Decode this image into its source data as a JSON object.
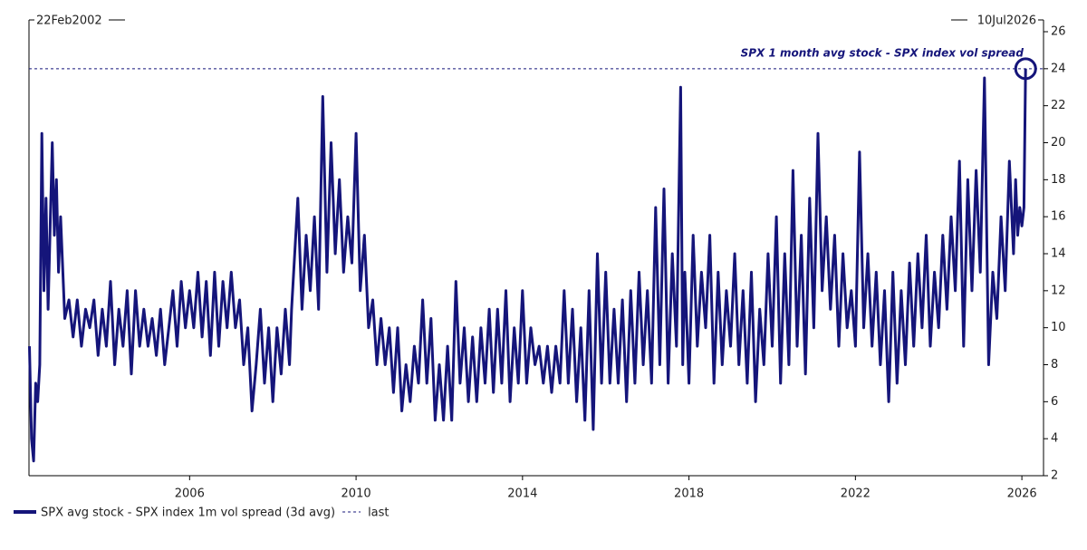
{
  "chart_data": {
    "type": "line",
    "annotation": "SPX 1 month avg stock - SPX index vol spread",
    "start_label": "22Feb2002",
    "end_label": "10Jul2026",
    "last_label": "last",
    "x": [
      2002.15,
      2002.2,
      2002.25,
      2002.3,
      2002.35,
      2002.4,
      2002.45,
      2002.5,
      2002.55,
      2002.6,
      2002.7,
      2002.75,
      2002.8,
      2002.85,
      2002.9,
      2003.0,
      2003.1,
      2003.2,
      2003.3,
      2003.4,
      2003.5,
      2003.6,
      2003.7,
      2003.8,
      2003.9,
      2004.0,
      2004.1,
      2004.2,
      2004.3,
      2004.4,
      2004.5,
      2004.6,
      2004.7,
      2004.8,
      2004.9,
      2005.0,
      2005.1,
      2005.2,
      2005.3,
      2005.4,
      2005.5,
      2005.6,
      2005.7,
      2005.8,
      2005.9,
      2006.0,
      2006.1,
      2006.2,
      2006.3,
      2006.4,
      2006.5,
      2006.6,
      2006.7,
      2006.8,
      2006.9,
      2007.0,
      2007.1,
      2007.2,
      2007.3,
      2007.4,
      2007.5,
      2007.6,
      2007.7,
      2007.8,
      2007.9,
      2008.0,
      2008.1,
      2008.2,
      2008.3,
      2008.4,
      2008.45,
      2008.6,
      2008.7,
      2008.8,
      2008.9,
      2009.0,
      2009.1,
      2009.2,
      2009.3,
      2009.4,
      2009.5,
      2009.6,
      2009.7,
      2009.8,
      2009.9,
      2010.0,
      2010.1,
      2010.2,
      2010.3,
      2010.4,
      2010.5,
      2010.6,
      2010.7,
      2010.8,
      2010.9,
      2011.0,
      2011.1,
      2011.2,
      2011.3,
      2011.4,
      2011.5,
      2011.6,
      2011.7,
      2011.8,
      2011.9,
      2012.0,
      2012.1,
      2012.2,
      2012.3,
      2012.4,
      2012.5,
      2012.6,
      2012.7,
      2012.8,
      2012.9,
      2013.0,
      2013.1,
      2013.2,
      2013.3,
      2013.4,
      2013.5,
      2013.6,
      2013.7,
      2013.8,
      2013.9,
      2014.0,
      2014.1,
      2014.2,
      2014.3,
      2014.4,
      2014.5,
      2014.6,
      2014.7,
      2014.8,
      2014.9,
      2015.0,
      2015.1,
      2015.2,
      2015.3,
      2015.4,
      2015.5,
      2015.6,
      2015.7,
      2015.8,
      2015.9,
      2016.0,
      2016.1,
      2016.2,
      2016.3,
      2016.4,
      2016.5,
      2016.6,
      2016.7,
      2016.8,
      2016.9,
      2017.0,
      2017.1,
      2017.2,
      2017.3,
      2017.4,
      2017.5,
      2017.6,
      2017.7,
      2017.8,
      2017.85,
      2017.9,
      2018.0,
      2018.1,
      2018.2,
      2018.3,
      2018.4,
      2018.5,
      2018.6,
      2018.7,
      2018.8,
      2018.9,
      2019.0,
      2019.1,
      2019.2,
      2019.3,
      2019.4,
      2019.5,
      2019.6,
      2019.7,
      2019.8,
      2019.9,
      2020.0,
      2020.1,
      2020.2,
      2020.3,
      2020.4,
      2020.5,
      2020.6,
      2020.7,
      2020.8,
      2020.9,
      2021.0,
      2021.1,
      2021.2,
      2021.3,
      2021.4,
      2021.5,
      2021.6,
      2021.7,
      2021.8,
      2021.9,
      2022.0,
      2022.1,
      2022.2,
      2022.3,
      2022.4,
      2022.5,
      2022.6,
      2022.7,
      2022.8,
      2022.9,
      2023.0,
      2023.1,
      2023.2,
      2023.3,
      2023.4,
      2023.5,
      2023.6,
      2023.7,
      2023.8,
      2023.9,
      2024.0,
      2024.1,
      2024.2,
      2024.3,
      2024.4,
      2024.5,
      2024.6,
      2024.7,
      2024.8,
      2024.9,
      2025.0,
      2025.1,
      2025.2,
      2025.3,
      2025.4,
      2025.5,
      2025.6,
      2025.7,
      2025.8,
      2025.85,
      2025.9,
      2025.95,
      2026.0,
      2026.05,
      2026.09
    ],
    "series": [
      {
        "name": "SPX avg stock - SPX index 1m vol spread (3d avg)",
        "color": "#15157a",
        "values": [
          9,
          4,
          2.8,
          7,
          6,
          8,
          20.5,
          12,
          17,
          11,
          20,
          15,
          18,
          13,
          16,
          10.5,
          11.5,
          9.5,
          11.5,
          9,
          11,
          10,
          11.5,
          8.5,
          11,
          9,
          12.5,
          8,
          11,
          9,
          12,
          7.5,
          12,
          9,
          11,
          9,
          10.5,
          8.5,
          11,
          8,
          10,
          12,
          9,
          12.5,
          10,
          12,
          10,
          13,
          9.5,
          12.5,
          8.5,
          13,
          9,
          12.5,
          10,
          13,
          10,
          11.5,
          8,
          10,
          5.5,
          8,
          11,
          7,
          10,
          6,
          10,
          7.5,
          11,
          8,
          11,
          17,
          11,
          15,
          12,
          16,
          11,
          22.5,
          13,
          20,
          14,
          18,
          13,
          16,
          13.5,
          20.5,
          12,
          15,
          10,
          11.5,
          8,
          10.5,
          8,
          10,
          6.5,
          10,
          5.5,
          8,
          6,
          9,
          7,
          11.5,
          7,
          10.5,
          5,
          8,
          5,
          9,
          5,
          12.5,
          7,
          10,
          6,
          9.5,
          6,
          10,
          7,
          11,
          6.5,
          11,
          7,
          12,
          6,
          10,
          7,
          12,
          7,
          10,
          8,
          9,
          7,
          9,
          6.5,
          9,
          7,
          12,
          7,
          11,
          6,
          10,
          5,
          12,
          4.5,
          14,
          7,
          13,
          7,
          11,
          7,
          11.5,
          6,
          12,
          7,
          13,
          8,
          12,
          7,
          16.5,
          8,
          17.5,
          7,
          14,
          9,
          23,
          8,
          13,
          7,
          15,
          9,
          13,
          10,
          15,
          7,
          13,
          8,
          12,
          9,
          14,
          8,
          12,
          7,
          13,
          6,
          11,
          8,
          14,
          9,
          16,
          7,
          14,
          8,
          18.5,
          9,
          15,
          7.5,
          17,
          10,
          20.5,
          12,
          16,
          11,
          15,
          9,
          14,
          10,
          12,
          9,
          19.5,
          10,
          14,
          9,
          13,
          8,
          12,
          6,
          13,
          7,
          12,
          8,
          13.5,
          9,
          14,
          10,
          15,
          9,
          13,
          10,
          15,
          11,
          16,
          12,
          19,
          9,
          18,
          12,
          18.5,
          13,
          23.5,
          8,
          13,
          10.5,
          16,
          12,
          19,
          14,
          18,
          15,
          16.5,
          15.5,
          16.5,
          24
        ]
      }
    ],
    "xlim": [
      2002.14,
      2026.52
    ],
    "xticks": [
      2006,
      2010,
      2014,
      2018,
      2022,
      2026
    ],
    "ylim": [
      2,
      26
    ],
    "yticks": [
      2,
      4,
      6,
      8,
      10,
      12,
      14,
      16,
      18,
      20,
      22,
      24,
      26
    ]
  }
}
